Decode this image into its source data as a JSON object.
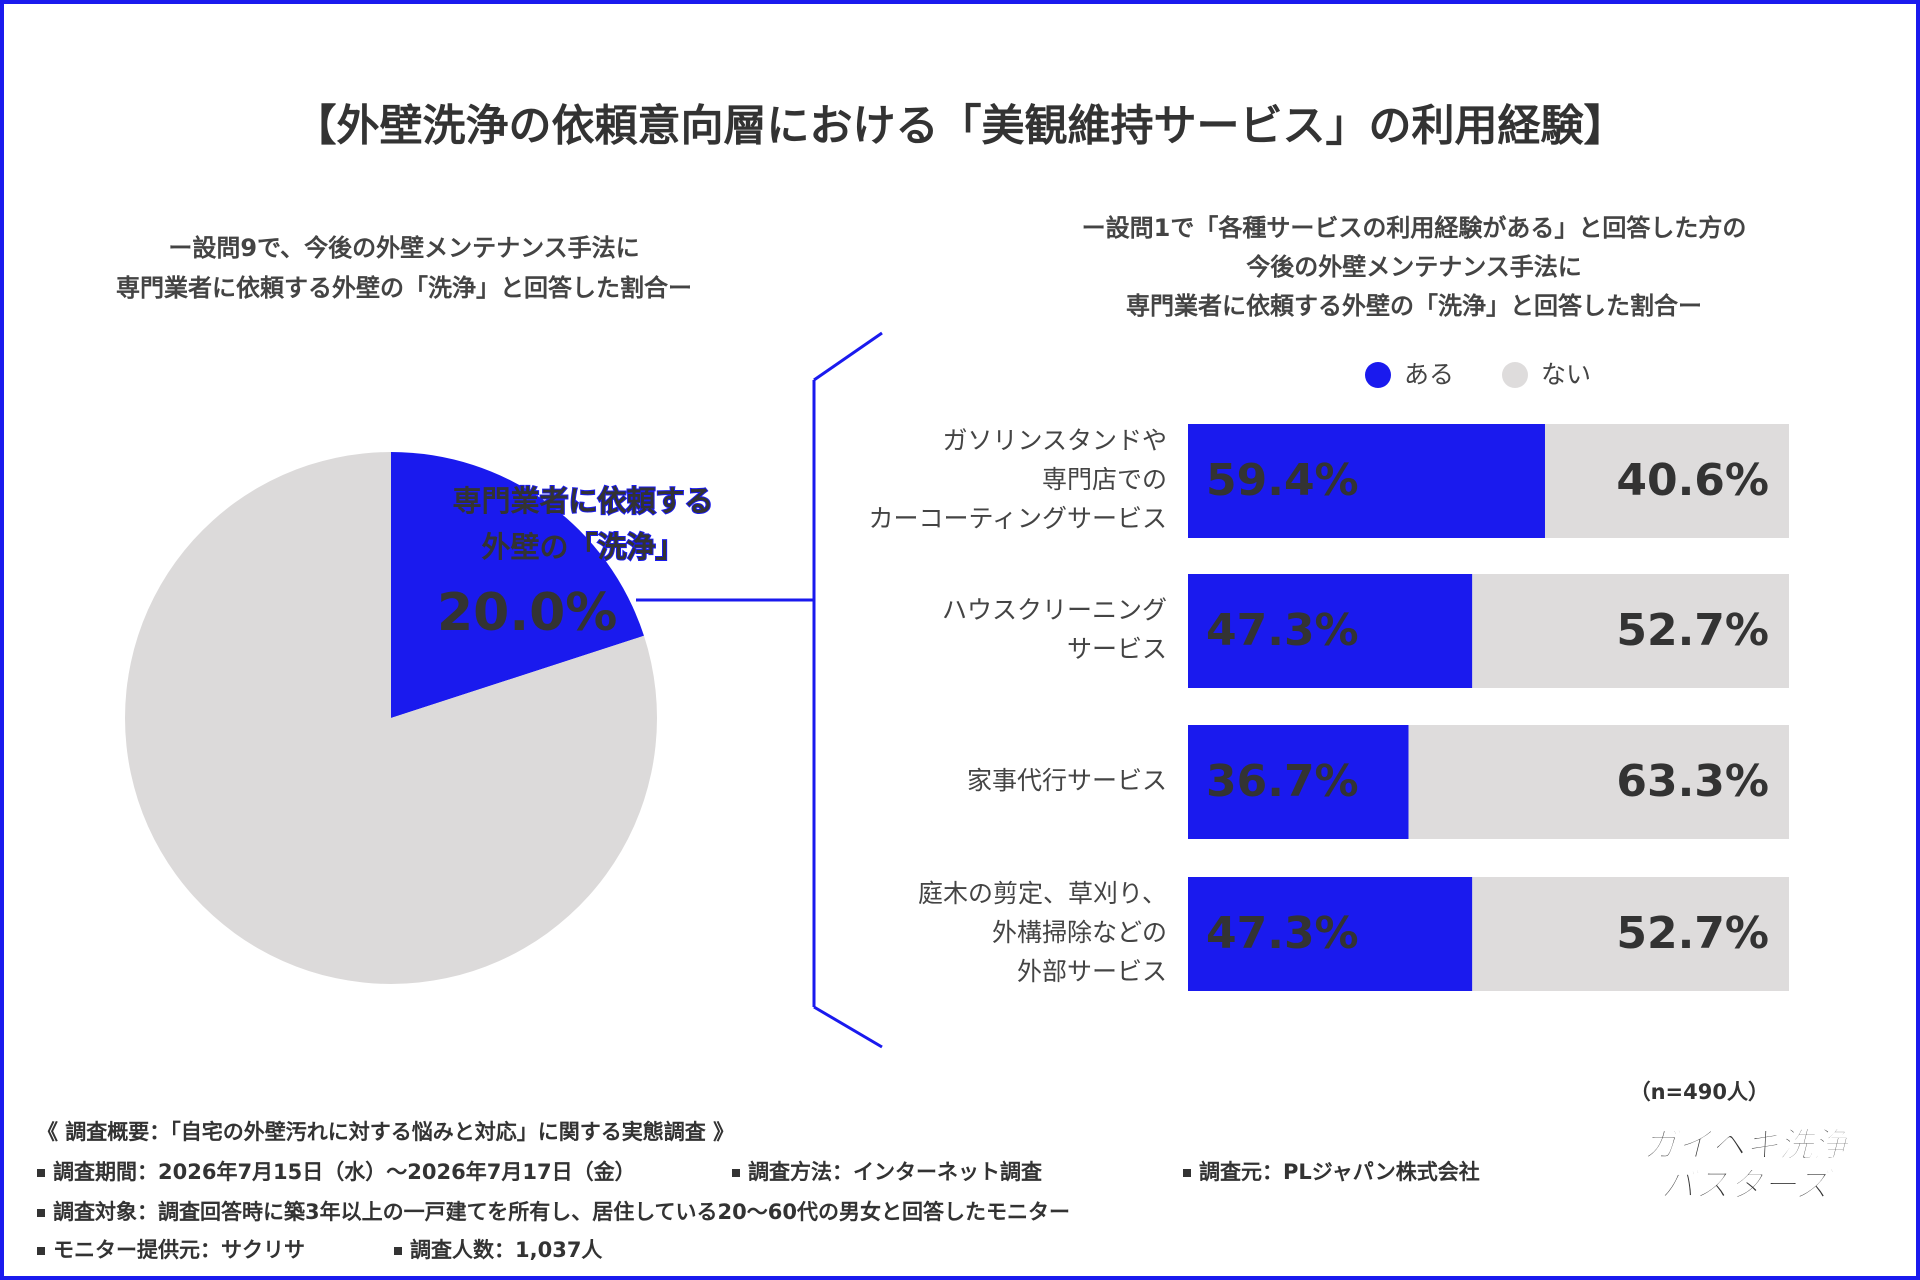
{
  "title": "【外壁洗浄の依頼意向層における「美観維持サービス」の利用経験】",
  "chart_data": [
    {
      "type": "pie",
      "subtitle": [
        "ー設問9で、今後の外壁メンテナンス手法に",
        "専門業者に依頼する外壁の「洗浄」と回答した割合ー"
      ],
      "categories": [
        [
          "専門業者に依頼する",
          "外壁の「洗浄」"
        ],
        null
      ],
      "values": [
        20.0,
        80.0
      ],
      "value_labels": [
        "20.0%",
        null
      ],
      "colors": [
        "#1a1aee",
        "#dcdada"
      ]
    },
    {
      "type": "bar",
      "orientation": "horizontal",
      "stacked": true,
      "subtitle": [
        "ー設問1で「各種サービスの利用経験がある」と回答した方の",
        "今後の外壁メンテナンス手法に",
        "専門業者に依頼する外壁の「洗浄」と回答した割合ー"
      ],
      "categories": [
        [
          "ガソリンスタンドや",
          "専門店での",
          "カーコーティングサービス"
        ],
        [
          "ハウスクリーニング",
          "サービス"
        ],
        [
          "家事代行サービス"
        ],
        [
          "庭木の剪定、草刈り、",
          "外構掃除などの",
          "外部サービス"
        ]
      ],
      "series": [
        {
          "name": "ある",
          "color": "#1a1aee",
          "values": [
            59.4,
            47.3,
            36.7,
            47.3
          ],
          "value_labels": [
            "59.4%",
            "47.3%",
            "36.7%",
            "47.3%"
          ]
        },
        {
          "name": "ない",
          "color": "#dedcdc",
          "values": [
            40.6,
            52.7,
            63.3,
            52.7
          ],
          "value_labels": [
            "40.6%",
            "52.7%",
            "63.3%",
            "52.7%"
          ]
        }
      ],
      "xlim": [
        0,
        100
      ],
      "legend": "top-right"
    }
  ],
  "footer": {
    "sample": "（n=490人）",
    "survey_title": "《 調査概要：「自宅の外壁汚れに対する悩みと対応」に関する実態調査 》",
    "items": [
      [
        "調査期間：2026年7月15日（水）〜2026年7月17日（金）",
        "調査方法：インターネット調査",
        "調査元：PLジャパン株式会社"
      ],
      [
        "調査対象：調査回答時に築3年以上の一戸建てを所有し、居住している20〜60代の男女と回答したモニター"
      ],
      [
        "モニター提供元：サクリサ",
        "調査人数：1,037人"
      ]
    ]
  },
  "logo": [
    "ガイヘキ洗浄",
    "バスターズ"
  ]
}
